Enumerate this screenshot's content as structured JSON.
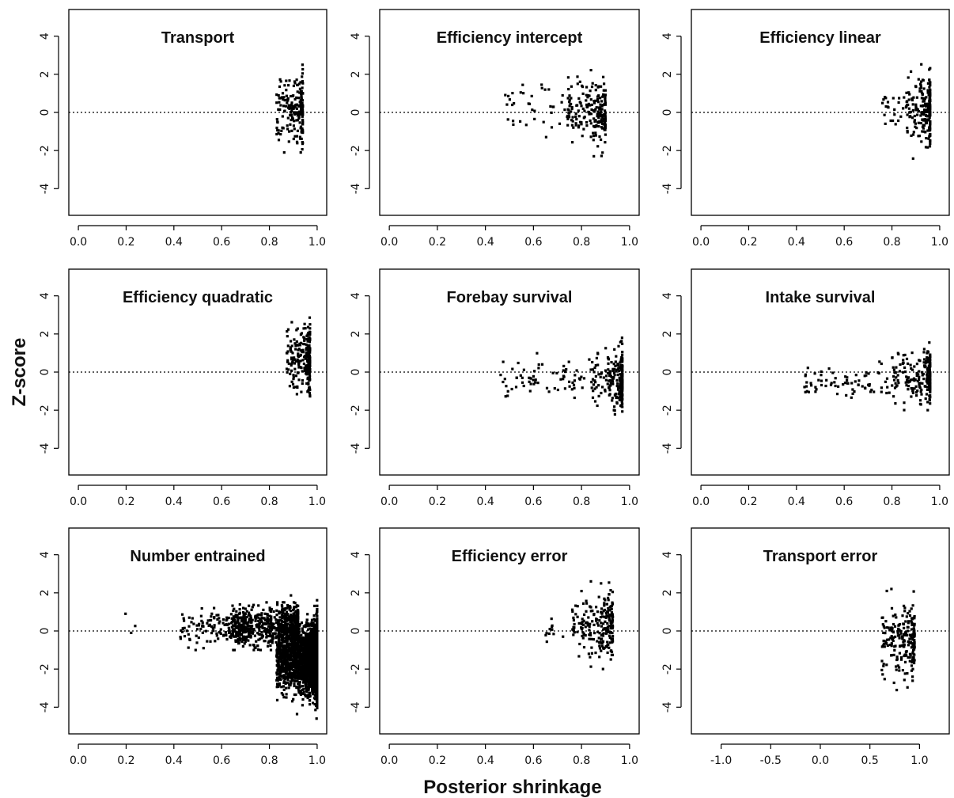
{
  "figure": {
    "ylabel": "Z-score",
    "xlabel": "Posterior shrinkage"
  },
  "chart_data": [
    {
      "type": "scatter",
      "title": "Transport",
      "xlim": [
        -0.04,
        1.04
      ],
      "ylim": [
        -5.4,
        5.4
      ],
      "xticks": [
        "0.0",
        "0.2",
        "0.4",
        "0.6",
        "0.8",
        "1.0"
      ],
      "xtick_values": [
        0,
        0.2,
        0.4,
        0.6,
        0.8,
        1.0
      ],
      "yticks": [
        "-4",
        "-2",
        "0",
        "2",
        "4"
      ],
      "ytick_values": [
        -4,
        -2,
        0,
        2,
        4
      ],
      "reference_line_y": 0,
      "clusters": [
        {
          "n": 200,
          "x": [
            0.83,
            0.94
          ],
          "y": [
            -2.1,
            2.5
          ],
          "sd": 0.85,
          "skew": 1
        }
      ]
    },
    {
      "type": "scatter",
      "title": "Efficiency intercept",
      "xlim": [
        -0.04,
        1.04
      ],
      "ylim": [
        -5.4,
        5.4
      ],
      "xticks": [
        "0.0",
        "0.2",
        "0.4",
        "0.6",
        "0.8",
        "1.0"
      ],
      "xtick_values": [
        0,
        0.2,
        0.4,
        0.6,
        0.8,
        1.0
      ],
      "yticks": [
        "-4",
        "-2",
        "0",
        "2",
        "4"
      ],
      "ytick_values": [
        -4,
        -2,
        0,
        2,
        4
      ],
      "reference_line_y": 0,
      "clusters": [
        {
          "n": 200,
          "x": [
            0.74,
            0.9
          ],
          "y": [
            -2.3,
            2.4
          ],
          "sd": 0.85,
          "skew": 1
        },
        {
          "n": 40,
          "x": [
            0.48,
            0.76
          ],
          "y": [
            -1.4,
            1.9
          ],
          "sd": 0.7,
          "skew": 0
        }
      ]
    },
    {
      "type": "scatter",
      "title": "Efficiency  linear",
      "xlim": [
        -0.04,
        1.04
      ],
      "ylim": [
        -5.4,
        5.4
      ],
      "xticks": [
        "0.0",
        "0.2",
        "0.4",
        "0.6",
        "0.8",
        "1.0"
      ],
      "xtick_values": [
        0,
        0.2,
        0.4,
        0.6,
        0.8,
        1.0
      ],
      "yticks": [
        "-4",
        "-2",
        "0",
        "2",
        "4"
      ],
      "ytick_values": [
        -4,
        -2,
        0,
        2,
        4
      ],
      "reference_line_y": 0,
      "clusters": [
        {
          "n": 220,
          "x": [
            0.86,
            0.96
          ],
          "y": [
            -2.8,
            3.1
          ],
          "sd": 0.9,
          "skew": 2
        },
        {
          "n": 25,
          "x": [
            0.76,
            0.87
          ],
          "y": [
            -1.0,
            1.2
          ],
          "sd": 0.5,
          "skew": 0
        }
      ]
    },
    {
      "type": "scatter",
      "title": "Efficiency  quadratic",
      "xlim": [
        -0.04,
        1.04
      ],
      "ylim": [
        -5.4,
        5.4
      ],
      "xticks": [
        "0.0",
        "0.2",
        "0.4",
        "0.6",
        "0.8",
        "1.0"
      ],
      "xtick_values": [
        0,
        0.2,
        0.4,
        0.6,
        0.8,
        1.0
      ],
      "yticks": [
        "-4",
        "-2",
        "0",
        "2",
        "4"
      ],
      "ytick_values": [
        -4,
        -2,
        0,
        2,
        4
      ],
      "reference_line_y": 0,
      "clusters": [
        {
          "n": 230,
          "x": [
            0.87,
            0.97
          ],
          "y": [
            -2.5,
            3.7
          ],
          "sd": 0.85,
          "skew": 2
        }
      ]
    },
    {
      "type": "scatter",
      "title": "Forebay survival",
      "xlim": [
        -0.04,
        1.04
      ],
      "ylim": [
        -5.4,
        5.4
      ],
      "xticks": [
        "0.0",
        "0.2",
        "0.4",
        "0.6",
        "0.8",
        "1.0"
      ],
      "xtick_values": [
        0,
        0.2,
        0.4,
        0.6,
        0.8,
        1.0
      ],
      "yticks": [
        "-4",
        "-2",
        "0",
        "2",
        "4"
      ],
      "ytick_values": [
        -4,
        -2,
        0,
        2,
        4
      ],
      "reference_line_y": 0,
      "clusters": [
        {
          "n": 230,
          "x": [
            0.84,
            0.97
          ],
          "y": [
            -2.4,
            1.8
          ],
          "sd": 0.8,
          "skew": 2
        },
        {
          "n": 70,
          "x": [
            0.46,
            0.85
          ],
          "y": [
            -2.0,
            1.2
          ],
          "sd": 0.5,
          "skew": 0
        }
      ]
    },
    {
      "type": "scatter",
      "title": "Intake survival",
      "xlim": [
        -0.04,
        1.04
      ],
      "ylim": [
        -5.4,
        5.4
      ],
      "xticks": [
        "0.0",
        "0.2",
        "0.4",
        "0.6",
        "0.8",
        "1.0"
      ],
      "xtick_values": [
        0,
        0.2,
        0.4,
        0.6,
        0.8,
        1.0
      ],
      "yticks": [
        "-4",
        "-2",
        "0",
        "2",
        "4"
      ],
      "ytick_values": [
        -4,
        -2,
        0,
        2,
        4
      ],
      "reference_line_y": 0,
      "clusters": [
        {
          "n": 230,
          "x": [
            0.8,
            0.96
          ],
          "y": [
            -2.0,
            1.6
          ],
          "sd": 0.65,
          "skew": 2
        },
        {
          "n": 75,
          "x": [
            0.43,
            0.82
          ],
          "y": [
            -2.0,
            1.0
          ],
          "sd": 0.45,
          "skew": 0
        }
      ]
    },
    {
      "type": "scatter",
      "title": "Number entrained",
      "xlim": [
        -0.04,
        1.04
      ],
      "ylim": [
        -5.4,
        5.4
      ],
      "xticks": [
        "0.0",
        "0.2",
        "0.4",
        "0.6",
        "0.8",
        "1.0"
      ],
      "xtick_values": [
        0,
        0.2,
        0.4,
        0.6,
        0.8,
        1.0
      ],
      "yticks": [
        "-4",
        "-2",
        "0",
        "2",
        "4"
      ],
      "ytick_values": [
        -4,
        -2,
        0,
        2,
        4
      ],
      "reference_line_y": 0,
      "clusters": [
        {
          "n": 3200,
          "x": [
            0.83,
            1.0
          ],
          "y": [
            -5.2,
            2.2
          ],
          "sd": 0.85,
          "skew": 3
        },
        {
          "n": 700,
          "x": [
            0.64,
            0.92
          ],
          "y": [
            -1.0,
            1.5
          ],
          "sd": 0.55,
          "skew": 1
        },
        {
          "n": 180,
          "x": [
            0.42,
            0.7
          ],
          "y": [
            -1.0,
            1.2
          ],
          "sd": 0.45,
          "skew": 1
        },
        {
          "n": 3,
          "x": [
            0.19,
            0.27
          ],
          "y": [
            -0.1,
            0.9
          ],
          "sd": 0.4,
          "skew": 0
        }
      ]
    },
    {
      "type": "scatter",
      "title": "Efficiency error",
      "xlim": [
        -0.04,
        1.04
      ],
      "ylim": [
        -5.4,
        5.4
      ],
      "xticks": [
        "0.0",
        "0.2",
        "0.4",
        "0.6",
        "0.8",
        "1.0"
      ],
      "xtick_values": [
        0,
        0.2,
        0.4,
        0.6,
        0.8,
        1.0
      ],
      "yticks": [
        "-4",
        "-2",
        "0",
        "2",
        "4"
      ],
      "ytick_values": [
        -4,
        -2,
        0,
        2,
        4
      ],
      "reference_line_y": 0,
      "clusters": [
        {
          "n": 220,
          "x": [
            0.76,
            0.93
          ],
          "y": [
            -2.0,
            2.6
          ],
          "sd": 0.8,
          "skew": 1
        },
        {
          "n": 15,
          "x": [
            0.65,
            0.78
          ],
          "y": [
            -0.8,
            1.0
          ],
          "sd": 0.5,
          "skew": 0
        }
      ]
    },
    {
      "type": "scatter",
      "title": "Transport error",
      "xlim": [
        -1.3,
        1.3
      ],
      "ylim": [
        -5.4,
        5.4
      ],
      "xticks": [
        "-1.0",
        "-0.5",
        "0.0",
        "0.5",
        "1.0"
      ],
      "xtick_values": [
        -1.0,
        -0.5,
        0,
        0.5,
        1.0
      ],
      "yticks": [
        "-4",
        "-2",
        "0",
        "2",
        "4"
      ],
      "ytick_values": [
        -4,
        -2,
        0,
        2,
        4
      ],
      "reference_line_y": 0,
      "clusters": [
        {
          "n": 220,
          "x": [
            0.62,
            0.95
          ],
          "y": [
            -3.1,
            2.2
          ],
          "sd": 0.9,
          "skew": 1
        }
      ]
    }
  ]
}
